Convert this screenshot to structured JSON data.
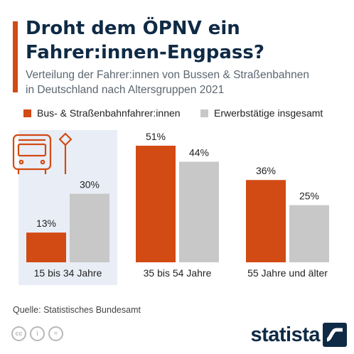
{
  "title_line1": "Droht dem ÖPNV ein",
  "title_line2": "Fahrer:innen-Engpass?",
  "subtitle_line1": "Verteilung der Fahrer:innen von Bussen & Straßenbahnen",
  "subtitle_line2": "in Deutschland nach Altersgruppen 2021",
  "source": "Quelle: Statistisches Bundesamt",
  "brand": "statista",
  "icons": [
    "cc-icon",
    "person-icon",
    "equals-icon",
    "bus-icon",
    "bus-stop-sign-icon",
    "statista-logo-icon"
  ],
  "cc_labels": [
    "cc",
    "i",
    "="
  ],
  "colors": {
    "accent": "#d24a14",
    "series1": "#d24a14",
    "series2": "#c8c8c8",
    "highlight_panel": "#e9eef6",
    "title": "#0f2a45"
  },
  "chart_data": {
    "type": "bar",
    "title": "Droht dem ÖPNV ein Fahrer:innen-Engpass?",
    "subtitle": "Verteilung der Fahrer:innen von Bussen & Straßenbahnen in Deutschland nach Altersgruppen 2021",
    "categories": [
      "15 bis 34 Jahre",
      "35 bis 54 Jahre",
      "55 Jahre und älter"
    ],
    "series": [
      {
        "name": "Bus- & Straßenbahnfahrer:innen",
        "values": [
          13,
          51,
          36
        ],
        "labels": [
          "13%",
          "51%",
          "36%"
        ]
      },
      {
        "name": "Erwerbstätige insgesamt",
        "values": [
          30,
          44,
          25
        ],
        "labels": [
          "30%",
          "44%",
          "25%"
        ]
      }
    ],
    "unit": "%",
    "ylim": [
      0,
      51
    ],
    "grid": false,
    "legend": "top-left",
    "highlighted_category": "15 bis 34 Jahre"
  }
}
